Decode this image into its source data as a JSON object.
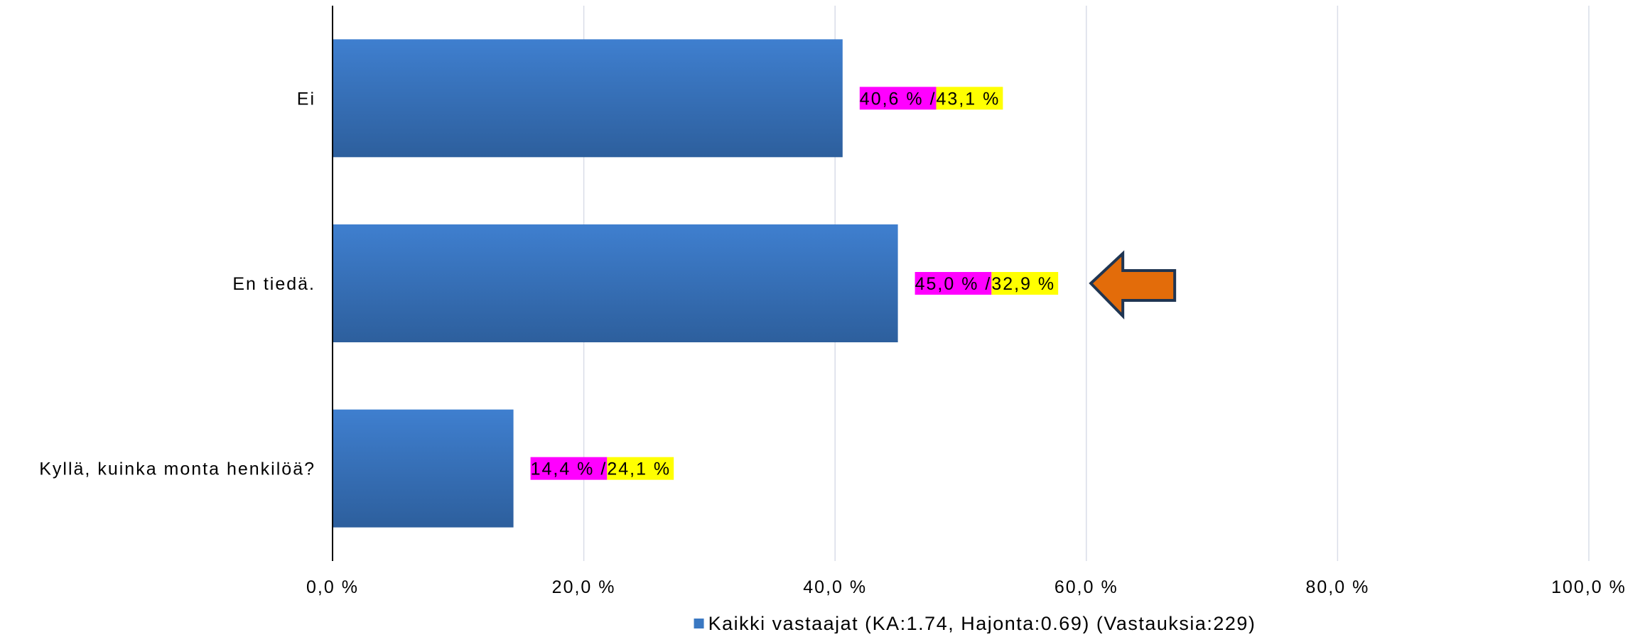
{
  "chart_data": {
    "type": "bar",
    "orientation": "horizontal",
    "categories": [
      "Ei",
      "En tiedä.",
      "Kyllä, kuinka monta henkilöä?"
    ],
    "series": [
      {
        "name": "Kaikki vastaajat (KA:1.74, Hajonta:0.69) (Vastauksia:229)",
        "values": [
          40.6,
          45.0,
          14.4
        ],
        "color": "#3a78c2"
      }
    ],
    "comparison_values": [
      43.1,
      32.9,
      24.1
    ],
    "data_labels": [
      {
        "primary": "40,6 % / ",
        "secondary": "43,1 %"
      },
      {
        "primary": "45,0 % / ",
        "secondary": "32,9 %"
      },
      {
        "primary": "14,4 % / ",
        "secondary": "24,1 %"
      }
    ],
    "label_colors": {
      "primary": "#ff00ff",
      "secondary": "#ffff00"
    },
    "xlim": [
      0,
      100
    ],
    "xticks": [
      "0,0 %",
      "20,0 %",
      "40,0 %",
      "60,0 %",
      "80,0 %",
      "100,0 %"
    ],
    "grid": true,
    "legend_position": "bottom",
    "highlight": {
      "category": "En tiedä.",
      "icon": "left-arrow-icon",
      "color": "#e36c0a",
      "outline": "#1f3552"
    }
  }
}
